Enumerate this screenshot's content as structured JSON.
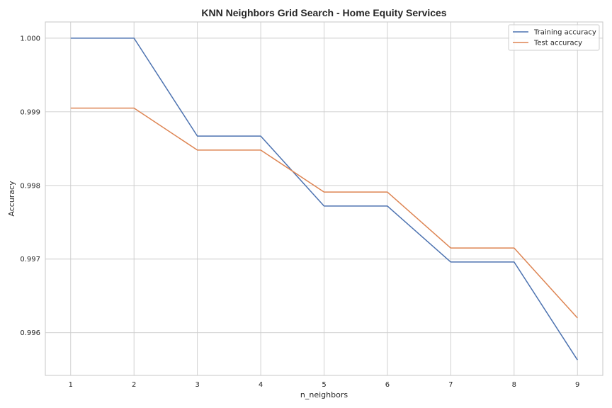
{
  "chart_data": {
    "type": "line",
    "title": "KNN Neighbors Grid Search - Home Equity Services",
    "xlabel": "n_neighbors",
    "ylabel": "Accuracy",
    "x": [
      1,
      2,
      3,
      4,
      5,
      6,
      7,
      8,
      9
    ],
    "xticks": [
      "1",
      "2",
      "3",
      "4",
      "5",
      "6",
      "7",
      "8",
      "9"
    ],
    "yticks": [
      "0.996",
      "0.997",
      "0.998",
      "0.999",
      "1.000"
    ],
    "xlim": [
      0.6,
      9.4
    ],
    "ylim": [
      0.99542,
      1.00022
    ],
    "grid": true,
    "legend_position": "top-right",
    "series": [
      {
        "name": "Training accuracy",
        "color": "#4c72b0",
        "values": [
          1.0,
          1.0,
          0.99867,
          0.99867,
          0.99772,
          0.99772,
          0.99696,
          0.99696,
          0.99563
        ]
      },
      {
        "name": "Test accuracy",
        "color": "#dd8452",
        "values": [
          0.99905,
          0.99905,
          0.99848,
          0.99848,
          0.99791,
          0.99791,
          0.99715,
          0.99715,
          0.9962
        ]
      }
    ]
  }
}
